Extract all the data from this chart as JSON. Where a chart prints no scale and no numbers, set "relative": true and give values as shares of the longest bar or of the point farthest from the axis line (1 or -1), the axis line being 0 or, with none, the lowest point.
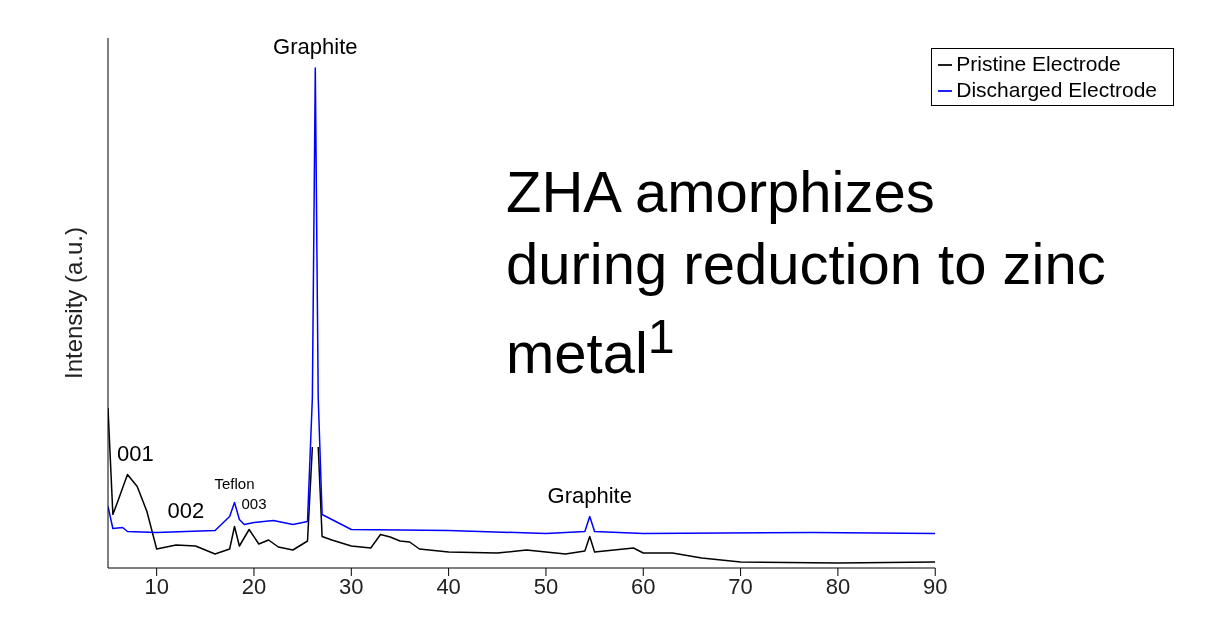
{
  "chart_data": {
    "type": "line",
    "ylabel": "Intensity (a.u.)",
    "relative": true,
    "xlim": [
      5,
      90
    ],
    "xticks": [
      10,
      20,
      30,
      40,
      50,
      60,
      70,
      80,
      90
    ],
    "legend": "top right",
    "marker": "none",
    "line_style": "solid",
    "series": [
      {
        "name": "Pristine Electrode",
        "color": "#000000",
        "x": [
          5,
          5.5,
          6,
          7,
          8,
          9,
          10,
          12,
          14,
          16,
          17.5,
          18,
          18.5,
          19.5,
          20.5,
          21.5,
          22.5,
          24,
          25.5,
          26,
          26.3,
          26.6,
          27,
          28,
          30,
          32,
          33,
          34,
          35,
          36,
          37,
          40,
          45,
          48,
          52,
          54,
          54.5,
          55,
          59,
          60,
          63,
          66,
          70,
          80,
          90
        ],
        "values": [
          0.32,
          0.107,
          0.133,
          0.187,
          0.163,
          0.113,
          0.038,
          0.046,
          0.044,
          0.028,
          0.038,
          0.083,
          0.044,
          0.077,
          0.048,
          0.056,
          0.042,
          0.036,
          0.054,
          0.242,
          null,
          0.242,
          0.063,
          0.056,
          0.044,
          0.04,
          0.067,
          0.062,
          0.054,
          0.052,
          0.038,
          0.032,
          0.03,
          0.036,
          0.028,
          0.034,
          0.063,
          0.032,
          0.04,
          0.03,
          0.03,
          0.02,
          0.012,
          0.01,
          0.012
        ]
      },
      {
        "name": "Discharged Electrode",
        "color": "#0000ff",
        "x": [
          5,
          5.5,
          6.5,
          7,
          10,
          13,
          16,
          17.5,
          18,
          18.5,
          19,
          20,
          22,
          24,
          25.5,
          26,
          26.3,
          26.6,
          27,
          30,
          40,
          50,
          54,
          54.5,
          55,
          60,
          77.5,
          90
        ],
        "values": [
          0.123,
          0.079,
          0.081,
          0.073,
          0.071,
          0.073,
          0.075,
          0.103,
          0.131,
          0.097,
          0.087,
          0.091,
          0.095,
          0.087,
          0.093,
          0.341,
          1,
          0.341,
          0.107,
          0.077,
          0.075,
          0.069,
          0.073,
          0.103,
          0.073,
          0.069,
          0.071,
          0.069
        ]
      }
    ],
    "annotations": [
      {
        "text": "Graphite",
        "x": 26.3,
        "y": 1
      },
      {
        "text": "001",
        "x": 7,
        "y": 0.187
      },
      {
        "text": "002",
        "x": 13,
        "y": 0.073
      },
      {
        "text": "Teflon",
        "x": 18,
        "y": 0.131
      },
      {
        "text": "003",
        "x": 20,
        "y": 0.091
      },
      {
        "text": "Graphite",
        "x": 54.5,
        "y": 0.103
      },
      "ZHA amorphizes during reduction to zinc metal$^{1}$"
    ]
  }
}
